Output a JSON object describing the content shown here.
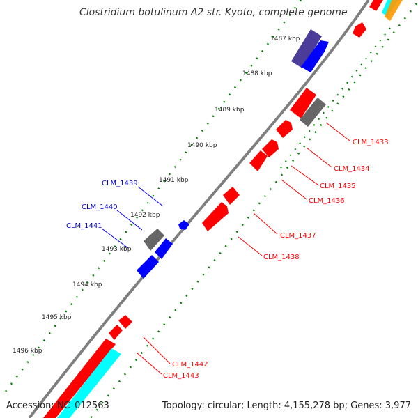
{
  "title": "Clostridium botulinum A2 str. Kyoto, complete genome",
  "footer": {
    "accession": "Accession: NC_012563",
    "summary": "Topology: circular; Length: 4,155,278 bp; Genes: 3,977"
  },
  "colors": {
    "forward_gene": "#ff0000",
    "reverse_gene": "#0000ff",
    "pseudo_gene": "#666666",
    "rna_gene": "#00ffff",
    "other_feature": "#ff9900",
    "purple_gene": "#4b3c9a",
    "tick": "#008000",
    "backbone": "#808080"
  },
  "scale_labels": [
    "1487 kbp",
    "1488 kbp",
    "1489 kbp",
    "1490 kbp",
    "1491 kbp",
    "1492 kbp",
    "1493 kbp",
    "1494 kbp",
    "1495 kbp",
    "1496 kbp"
  ],
  "forward_labels": [
    "CLM_1433",
    "CLM_1434",
    "CLM_1435",
    "CLM_1436",
    "CLM_1437",
    "CLM_1438",
    "CLM_1442",
    "CLM_1443"
  ],
  "reverse_labels": [
    "CLM_1439",
    "CLM_1440",
    "CLM_1441"
  ]
}
